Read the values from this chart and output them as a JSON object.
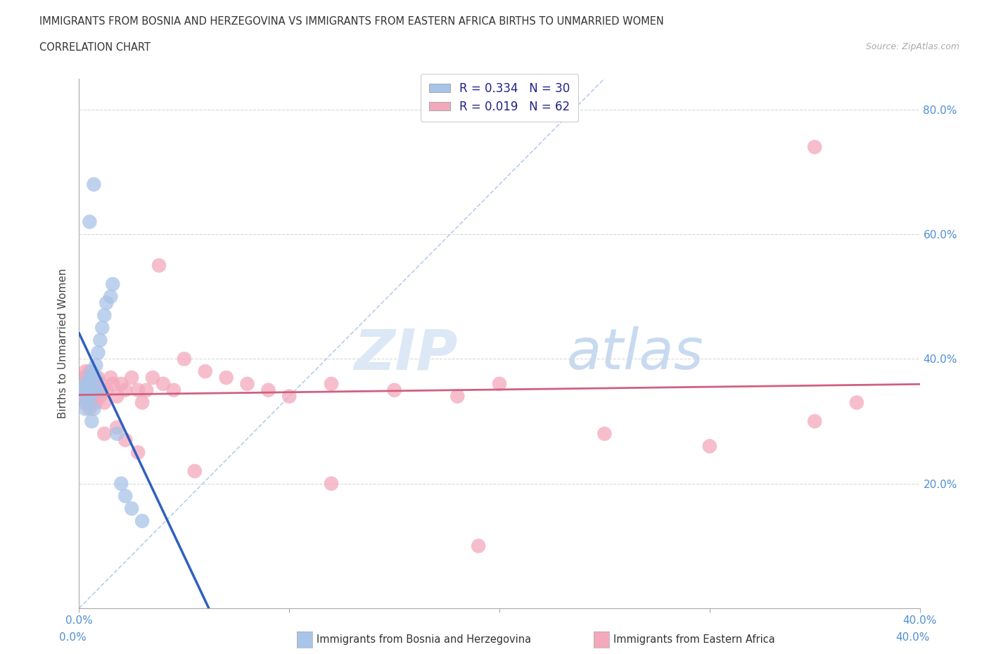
{
  "title_line1": "IMMIGRANTS FROM BOSNIA AND HERZEGOVINA VS IMMIGRANTS FROM EASTERN AFRICA BIRTHS TO UNMARRIED WOMEN",
  "title_line2": "CORRELATION CHART",
  "source_text": "Source: ZipAtlas.com",
  "ylabel": "Births to Unmarried Women",
  "xlim": [
    0.0,
    0.4
  ],
  "ylim": [
    0.0,
    0.85
  ],
  "x_tick_positions": [
    0.0,
    0.1,
    0.2,
    0.3,
    0.4
  ],
  "x_tick_labels_bottom": [
    "0.0%",
    "",
    "",
    "",
    "40.0%"
  ],
  "y_tick_positions": [
    0.0,
    0.2,
    0.4,
    0.6,
    0.8
  ],
  "y_right_labels": [
    "",
    "20.0%",
    "40.0%",
    "60.0%",
    "80.0%"
  ],
  "watermark_zip": "ZIP",
  "watermark_atlas": "atlas",
  "legend_label1": "R = 0.334   N = 30",
  "legend_label2": "R = 0.019   N = 62",
  "color_bosnia": "#a8c4e8",
  "color_eastern": "#f4a8bc",
  "trendline_color_bosnia": "#3060c0",
  "trendline_color_eastern": "#d06080",
  "diag_color": "#b0c8e8",
  "grid_color": "#d8d8d8",
  "background_color": "#ffffff",
  "tick_color": "#5090d0",
  "bottom_legend_label1": "Immigrants from Bosnia and Herzegovina",
  "bottom_legend_label2": "Immigrants from Eastern Africa",
  "bosnia_x": [
    0.001,
    0.002,
    0.003,
    0.003,
    0.004,
    0.004,
    0.005,
    0.005,
    0.005,
    0.006,
    0.006,
    0.007,
    0.007,
    0.008,
    0.008,
    0.009,
    0.01,
    0.01,
    0.011,
    0.012,
    0.013,
    0.015,
    0.016,
    0.018,
    0.02,
    0.022,
    0.025,
    0.03,
    0.005,
    0.007
  ],
  "bosnia_y": [
    0.34,
    0.35,
    0.32,
    0.36,
    0.33,
    0.35,
    0.37,
    0.34,
    0.36,
    0.38,
    0.3,
    0.32,
    0.35,
    0.37,
    0.39,
    0.41,
    0.43,
    0.35,
    0.45,
    0.47,
    0.49,
    0.5,
    0.52,
    0.28,
    0.2,
    0.18,
    0.16,
    0.14,
    0.62,
    0.68
  ],
  "eastern_x": [
    0.001,
    0.001,
    0.002,
    0.002,
    0.002,
    0.003,
    0.003,
    0.003,
    0.004,
    0.004,
    0.004,
    0.005,
    0.005,
    0.005,
    0.005,
    0.006,
    0.006,
    0.007,
    0.007,
    0.008,
    0.008,
    0.009,
    0.01,
    0.01,
    0.011,
    0.012,
    0.013,
    0.015,
    0.016,
    0.018,
    0.02,
    0.022,
    0.025,
    0.028,
    0.03,
    0.032,
    0.035,
    0.038,
    0.04,
    0.045,
    0.05,
    0.06,
    0.07,
    0.08,
    0.09,
    0.1,
    0.12,
    0.15,
    0.18,
    0.2,
    0.25,
    0.3,
    0.35,
    0.37,
    0.012,
    0.018,
    0.022,
    0.028,
    0.055,
    0.12,
    0.19,
    0.35
  ],
  "eastern_y": [
    0.34,
    0.36,
    0.33,
    0.35,
    0.37,
    0.34,
    0.36,
    0.38,
    0.33,
    0.35,
    0.37,
    0.32,
    0.34,
    0.36,
    0.38,
    0.33,
    0.35,
    0.34,
    0.36,
    0.33,
    0.35,
    0.37,
    0.34,
    0.36,
    0.35,
    0.33,
    0.35,
    0.37,
    0.36,
    0.34,
    0.36,
    0.35,
    0.37,
    0.35,
    0.33,
    0.35,
    0.37,
    0.55,
    0.36,
    0.35,
    0.4,
    0.38,
    0.37,
    0.36,
    0.35,
    0.34,
    0.36,
    0.35,
    0.34,
    0.36,
    0.28,
    0.26,
    0.3,
    0.33,
    0.28,
    0.29,
    0.27,
    0.25,
    0.22,
    0.2,
    0.1,
    0.74
  ]
}
